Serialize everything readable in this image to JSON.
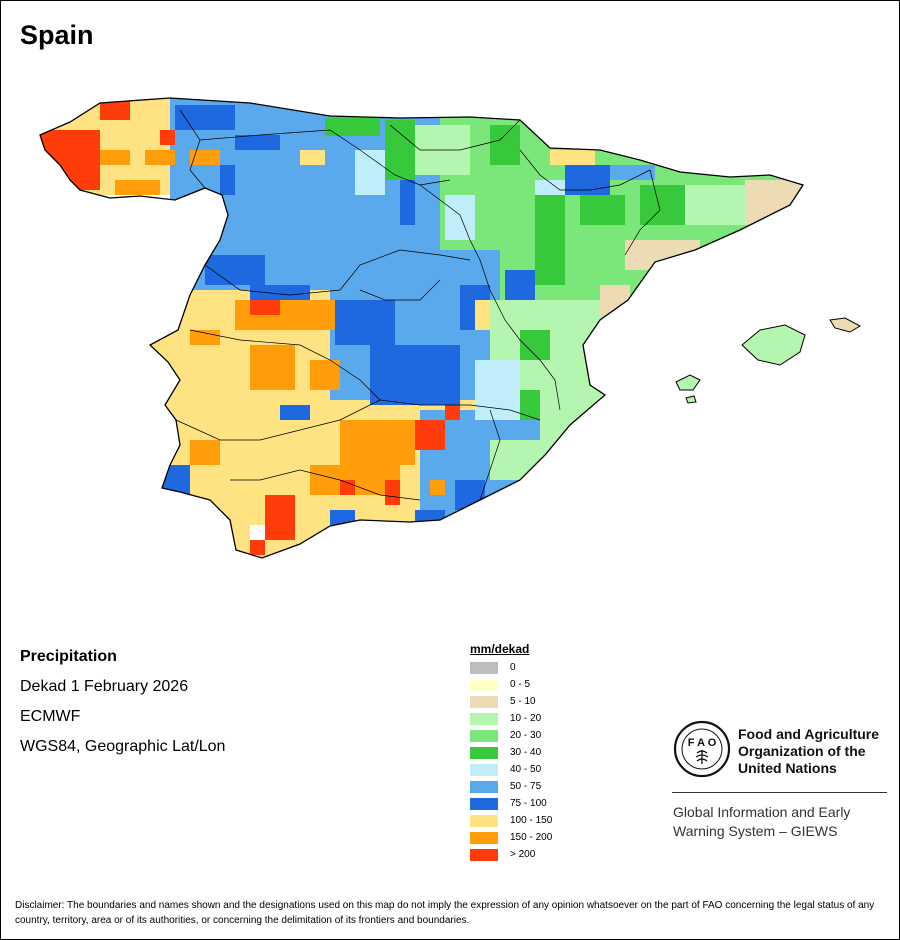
{
  "map": {
    "title": "Spain",
    "info": [
      "Precipitation",
      "Dekad 1 February 2026",
      "ECMWF",
      "WGS84, Geographic Lat/Lon"
    ],
    "legend": {
      "title": "mm/dekad",
      "classes": [
        {
          "label": "0",
          "color": "#bdbdbd"
        },
        {
          "label": "0 - 5",
          "color": "#ffffc8"
        },
        {
          "label": "5 - 10",
          "color": "#eddbb4"
        },
        {
          "label": "10 - 20",
          "color": "#b4f5b0"
        },
        {
          "label": "20 - 30",
          "color": "#7be67a"
        },
        {
          "label": "30 - 40",
          "color": "#37c83c"
        },
        {
          "label": "40 - 50",
          "color": "#bfeefa"
        },
        {
          "label": "50 - 75",
          "color": "#5aa9ec"
        },
        {
          "label": "75 - 100",
          "color": "#1e69e0"
        },
        {
          "label": "100 - 150",
          "color": "#ffe282"
        },
        {
          "label": "150 - 200",
          "color": "#ff9d0a"
        },
        {
          "label": "> 200",
          "color": "#ff3c0a"
        }
      ]
    },
    "organization": {
      "name_lines": [
        "Food and Agriculture",
        "Organization of the",
        "United Nations"
      ],
      "system_lines": [
        "Global Information and Early",
        "Warning System – GIEWS"
      ],
      "logo_name": "fao-logo"
    },
    "disclaimer": "Disclaimer: The boundaries and names shown and the designations used on this map do not imply the expression of any opinion whatsoever on the part of FAO concerning the legal status of any country, territory, area or of its authorities, or concerning the delimitation of its frontiers and boundaries."
  }
}
